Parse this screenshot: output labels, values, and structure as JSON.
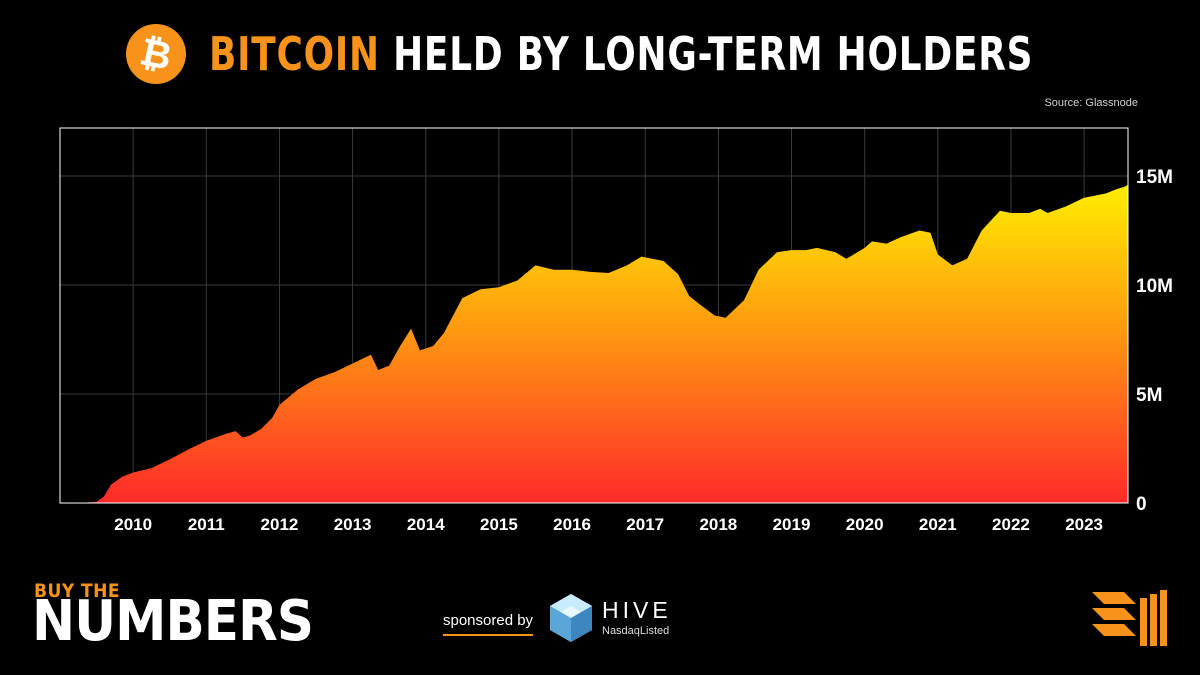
{
  "header": {
    "title_accent": "BITCOIN",
    "title_rest": "HELD BY LONG-TERM HOLDERS",
    "source": "Source: Glassnode",
    "logo_letter": "₿"
  },
  "colors": {
    "accent": "#f7931a",
    "area_top": "#ffee00",
    "area_mid": "#ff9a10",
    "area_bottom": "#ff2a2a",
    "background": "#000000"
  },
  "chart_data": {
    "type": "area",
    "title": "BITCOIN HELD BY LONG-TERM HOLDERS",
    "xlabel": "",
    "ylabel": "",
    "x_ticks": [
      "2010",
      "2011",
      "2012",
      "2013",
      "2014",
      "2015",
      "2016",
      "2017",
      "2018",
      "2019",
      "2020",
      "2021",
      "2022",
      "2023"
    ],
    "y_ticks": [
      {
        "value": 0,
        "label": "0"
      },
      {
        "value": 5000000,
        "label": "5M"
      },
      {
        "value": 10000000,
        "label": "10M"
      },
      {
        "value": 15000000,
        "label": "15M"
      }
    ],
    "xlim": [
      2009.0,
      2023.6
    ],
    "ylim": [
      0,
      17200000
    ],
    "y_axis_side": "right",
    "grid": true,
    "series": [
      {
        "points": [
          [
            2009.0,
            0.0
          ],
          [
            2009.3,
            0.01
          ],
          [
            2009.5,
            0.05
          ],
          [
            2009.6,
            0.3
          ],
          [
            2009.7,
            0.85
          ],
          [
            2009.85,
            1.2
          ],
          [
            2010.0,
            1.4
          ],
          [
            2010.25,
            1.6
          ],
          [
            2010.5,
            2.0
          ],
          [
            2010.75,
            2.45
          ],
          [
            2011.0,
            2.85
          ],
          [
            2011.25,
            3.15
          ],
          [
            2011.4,
            3.3
          ],
          [
            2011.5,
            3.0
          ],
          [
            2011.6,
            3.1
          ],
          [
            2011.75,
            3.4
          ],
          [
            2011.9,
            3.9
          ],
          [
            2012.0,
            4.5
          ],
          [
            2012.25,
            5.2
          ],
          [
            2012.5,
            5.7
          ],
          [
            2012.75,
            6.0
          ],
          [
            2013.0,
            6.4
          ],
          [
            2013.25,
            6.8
          ],
          [
            2013.35,
            6.1
          ],
          [
            2013.5,
            6.3
          ],
          [
            2013.65,
            7.2
          ],
          [
            2013.8,
            8.0
          ],
          [
            2013.92,
            7.0
          ],
          [
            2014.1,
            7.2
          ],
          [
            2014.25,
            7.8
          ],
          [
            2014.5,
            9.4
          ],
          [
            2014.75,
            9.8
          ],
          [
            2015.0,
            9.9
          ],
          [
            2015.25,
            10.2
          ],
          [
            2015.5,
            10.9
          ],
          [
            2015.75,
            10.7
          ],
          [
            2016.0,
            10.7
          ],
          [
            2016.25,
            10.6
          ],
          [
            2016.5,
            10.55
          ],
          [
            2016.75,
            10.9
          ],
          [
            2016.95,
            11.3
          ],
          [
            2017.25,
            11.1
          ],
          [
            2017.45,
            10.5
          ],
          [
            2017.6,
            9.5
          ],
          [
            2017.75,
            9.1
          ],
          [
            2017.95,
            8.6
          ],
          [
            2018.1,
            8.5
          ],
          [
            2018.35,
            9.3
          ],
          [
            2018.55,
            10.7
          ],
          [
            2018.8,
            11.5
          ],
          [
            2019.0,
            11.6
          ],
          [
            2019.2,
            11.6
          ],
          [
            2019.35,
            11.7
          ],
          [
            2019.6,
            11.5
          ],
          [
            2019.75,
            11.2
          ],
          [
            2020.0,
            11.7
          ],
          [
            2020.1,
            12.0
          ],
          [
            2020.3,
            11.9
          ],
          [
            2020.5,
            12.2
          ],
          [
            2020.75,
            12.5
          ],
          [
            2020.9,
            12.4
          ],
          [
            2021.0,
            11.4
          ],
          [
            2021.2,
            10.9
          ],
          [
            2021.4,
            11.2
          ],
          [
            2021.6,
            12.5
          ],
          [
            2021.85,
            13.4
          ],
          [
            2022.0,
            13.3
          ],
          [
            2022.25,
            13.3
          ],
          [
            2022.4,
            13.5
          ],
          [
            2022.5,
            13.3
          ],
          [
            2022.75,
            13.6
          ],
          [
            2023.0,
            14.0
          ],
          [
            2023.15,
            14.1
          ],
          [
            2023.3,
            14.2
          ],
          [
            2023.45,
            14.4
          ],
          [
            2023.55,
            14.5
          ],
          [
            2023.6,
            14.6
          ]
        ],
        "unit": "million BTC"
      }
    ]
  },
  "footer": {
    "brand_small": "BUY THE",
    "brand_big": "NUMBERS",
    "sponsored_by": "sponsored by",
    "sponsor_name": "HIVE",
    "sponsor_sub": "NasdaqListed"
  }
}
